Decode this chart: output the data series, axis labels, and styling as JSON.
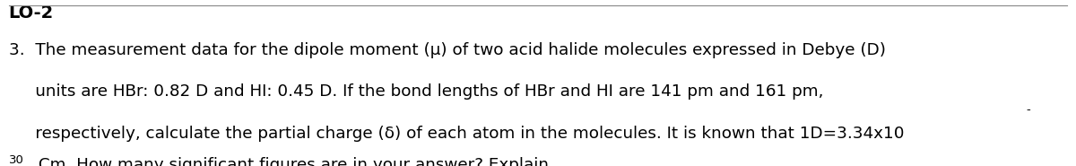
{
  "title": "LO-2",
  "line1": "3.  The measurement data for the dipole moment (μ) of two acid halide molecules expressed in Debye (D)",
  "line2": "     units are HBr: 0.82 D and HI: 0.45 D. If the bond lengths of HBr and HI are 141 pm and 161 pm,",
  "line3": "     respectively, calculate the partial charge (δ) of each atom in the molecules. It is known that 1D=3.34x10",
  "line3_sup": "-",
  "line4_sup": "30",
  "line4": " Cm. How many significant figures are in your answer? Explain.",
  "background_color": "#ffffff",
  "text_color": "#000000",
  "font_size": 13.2,
  "title_font_size": 14,
  "border_color": "#888888"
}
